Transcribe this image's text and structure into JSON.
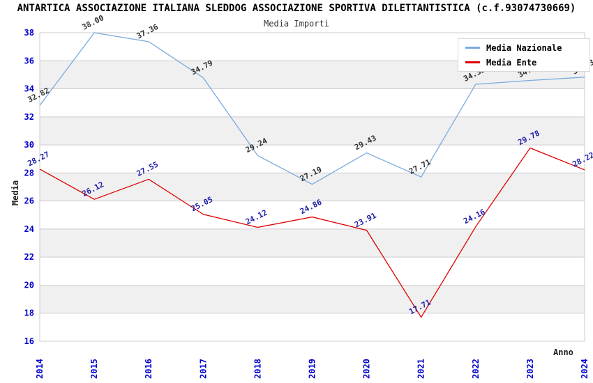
{
  "title": "ANTARTICA ASSOCIAZIONE ITALIANA SLEDDOG ASSOCIAZIONE SPORTIVA DILETTANTISTICA (c.f.93074730669)",
  "subtitle": "Media Importi",
  "colors": {
    "nazionale_line": "#7AAADF",
    "ente_line": "#DD0000",
    "axis_ticks": "#0000CC",
    "gridline": "#CCCCCC",
    "band_gray": "#F0F0F0",
    "nazionale_label_text": "#333333",
    "ente_label_text": "#2222AA"
  },
  "chart_data": {
    "type": "line",
    "x": [
      "2014",
      "2015",
      "2016",
      "2017",
      "2018",
      "2019",
      "2020",
      "2021",
      "2022",
      "2023",
      "2024"
    ],
    "series": [
      {
        "name": "Media Nazionale",
        "color": "#7AAADF",
        "label_color": "#333333",
        "values": [
          32.82,
          38.0,
          37.36,
          34.79,
          29.24,
          27.19,
          29.43,
          27.71,
          34.32,
          34.6,
          34.83
        ]
      },
      {
        "name": "Media Ente",
        "color": "#DD0000",
        "label_color": "#2222AA",
        "values": [
          28.27,
          26.12,
          27.55,
          25.05,
          24.12,
          24.86,
          23.91,
          17.71,
          24.16,
          29.78,
          28.22
        ]
      }
    ],
    "xlabel": "Anno",
    "ylabel": "Media",
    "ylim": [
      16,
      38
    ],
    "ytick_step": 2,
    "grid": true,
    "legend_position": "top-right",
    "note": "2023 Media Nazionale label partially hidden behind legend; value estimated from line position"
  }
}
